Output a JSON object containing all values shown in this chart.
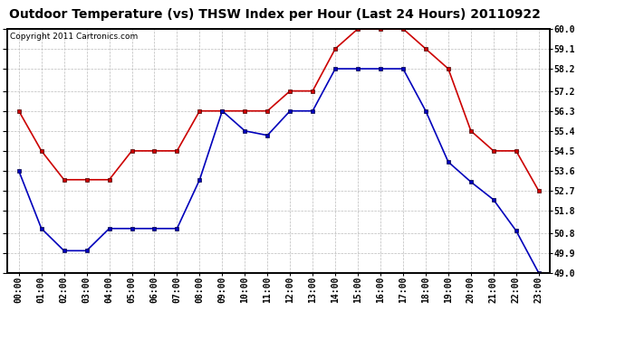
{
  "title": "Outdoor Temperature (vs) THSW Index per Hour (Last 24 Hours) 20110922",
  "copyright": "Copyright 2011 Cartronics.com",
  "hours": [
    "00:00",
    "01:00",
    "02:00",
    "03:00",
    "04:00",
    "05:00",
    "06:00",
    "07:00",
    "08:00",
    "09:00",
    "10:00",
    "11:00",
    "12:00",
    "13:00",
    "14:00",
    "15:00",
    "16:00",
    "17:00",
    "18:00",
    "19:00",
    "20:00",
    "21:00",
    "22:00",
    "23:00"
  ],
  "temp_blue": [
    53.6,
    51.0,
    50.0,
    50.0,
    51.0,
    51.0,
    51.0,
    51.0,
    53.2,
    56.3,
    55.4,
    55.2,
    56.3,
    56.3,
    58.2,
    58.2,
    58.2,
    58.2,
    56.3,
    54.0,
    53.1,
    52.3,
    50.9,
    49.0
  ],
  "thsw_red": [
    56.3,
    54.5,
    53.2,
    53.2,
    53.2,
    54.5,
    54.5,
    54.5,
    56.3,
    56.3,
    56.3,
    56.3,
    57.2,
    57.2,
    59.1,
    60.0,
    60.0,
    60.0,
    59.1,
    58.2,
    55.4,
    54.5,
    54.5,
    52.7
  ],
  "ylim_min": 49.0,
  "ylim_max": 60.0,
  "yticks": [
    49.0,
    49.9,
    50.8,
    51.8,
    52.7,
    53.6,
    54.5,
    55.4,
    56.3,
    57.2,
    58.2,
    59.1,
    60.0
  ],
  "blue_color": "#0000bb",
  "red_color": "#cc0000",
  "bg_color": "#ffffff",
  "grid_color": "#bbbbbb",
  "title_fontsize": 10,
  "copyright_fontsize": 6.5,
  "tick_fontsize": 7
}
